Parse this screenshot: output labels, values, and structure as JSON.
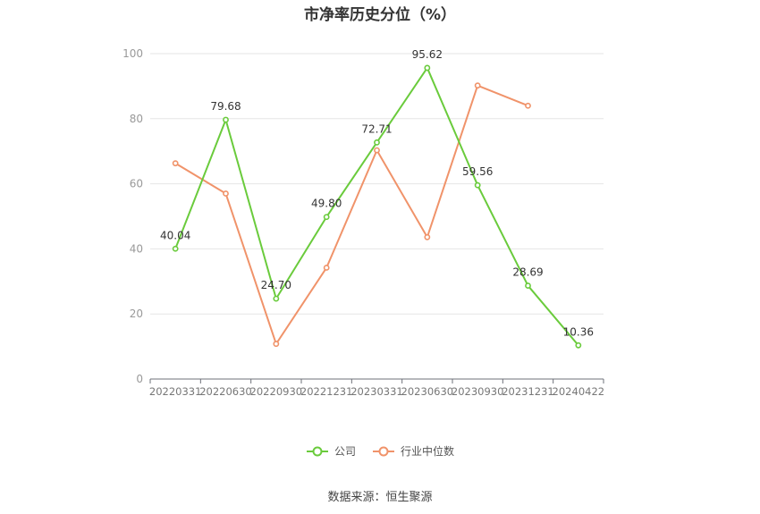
{
  "title": "市净率历史分位（%）",
  "source": "数据来源：恒生聚源",
  "chart_data": {
    "type": "line",
    "title": "市净率历史分位（%）",
    "categories": [
      "20220331",
      "20220630",
      "20220930",
      "20221231",
      "20230331",
      "20230630",
      "20230930",
      "20231231",
      "20240422"
    ],
    "ylim": [
      0,
      100
    ],
    "yticks": [
      0,
      20,
      40,
      60,
      80,
      100
    ],
    "grid": true,
    "legend_position": "bottom",
    "series": [
      {
        "name": "公司",
        "color": "#6acb3c",
        "values": [
          40.04,
          79.68,
          24.7,
          49.8,
          72.71,
          95.62,
          59.56,
          28.69,
          10.36
        ],
        "labels": [
          "40.04",
          "79.68",
          "24.70",
          "49.80",
          "72.71",
          "95.62",
          "59.56",
          "28.69",
          "10.36"
        ]
      },
      {
        "name": "行业中位数",
        "color": "#f0936a",
        "values": [
          66.3,
          57.0,
          10.8,
          34.2,
          70.3,
          43.6,
          90.2,
          84.0,
          null
        ]
      }
    ]
  }
}
